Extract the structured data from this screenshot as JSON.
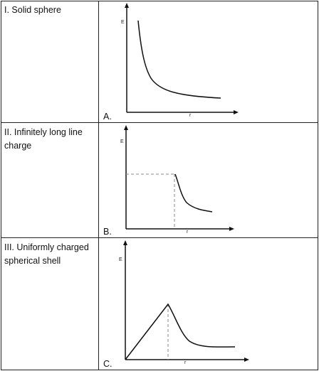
{
  "rows": [
    {
      "label": "I. Solid sphere",
      "option": "A.",
      "y_axis": "E",
      "x_axis": "r"
    },
    {
      "label": "II. Infinitely long line charge",
      "option": "B.",
      "y_axis": "E",
      "x_axis": "r"
    },
    {
      "label": "III. Uniformly charged spherical shell",
      "option": "C.",
      "y_axis": "E",
      "x_axis": "r"
    }
  ]
}
